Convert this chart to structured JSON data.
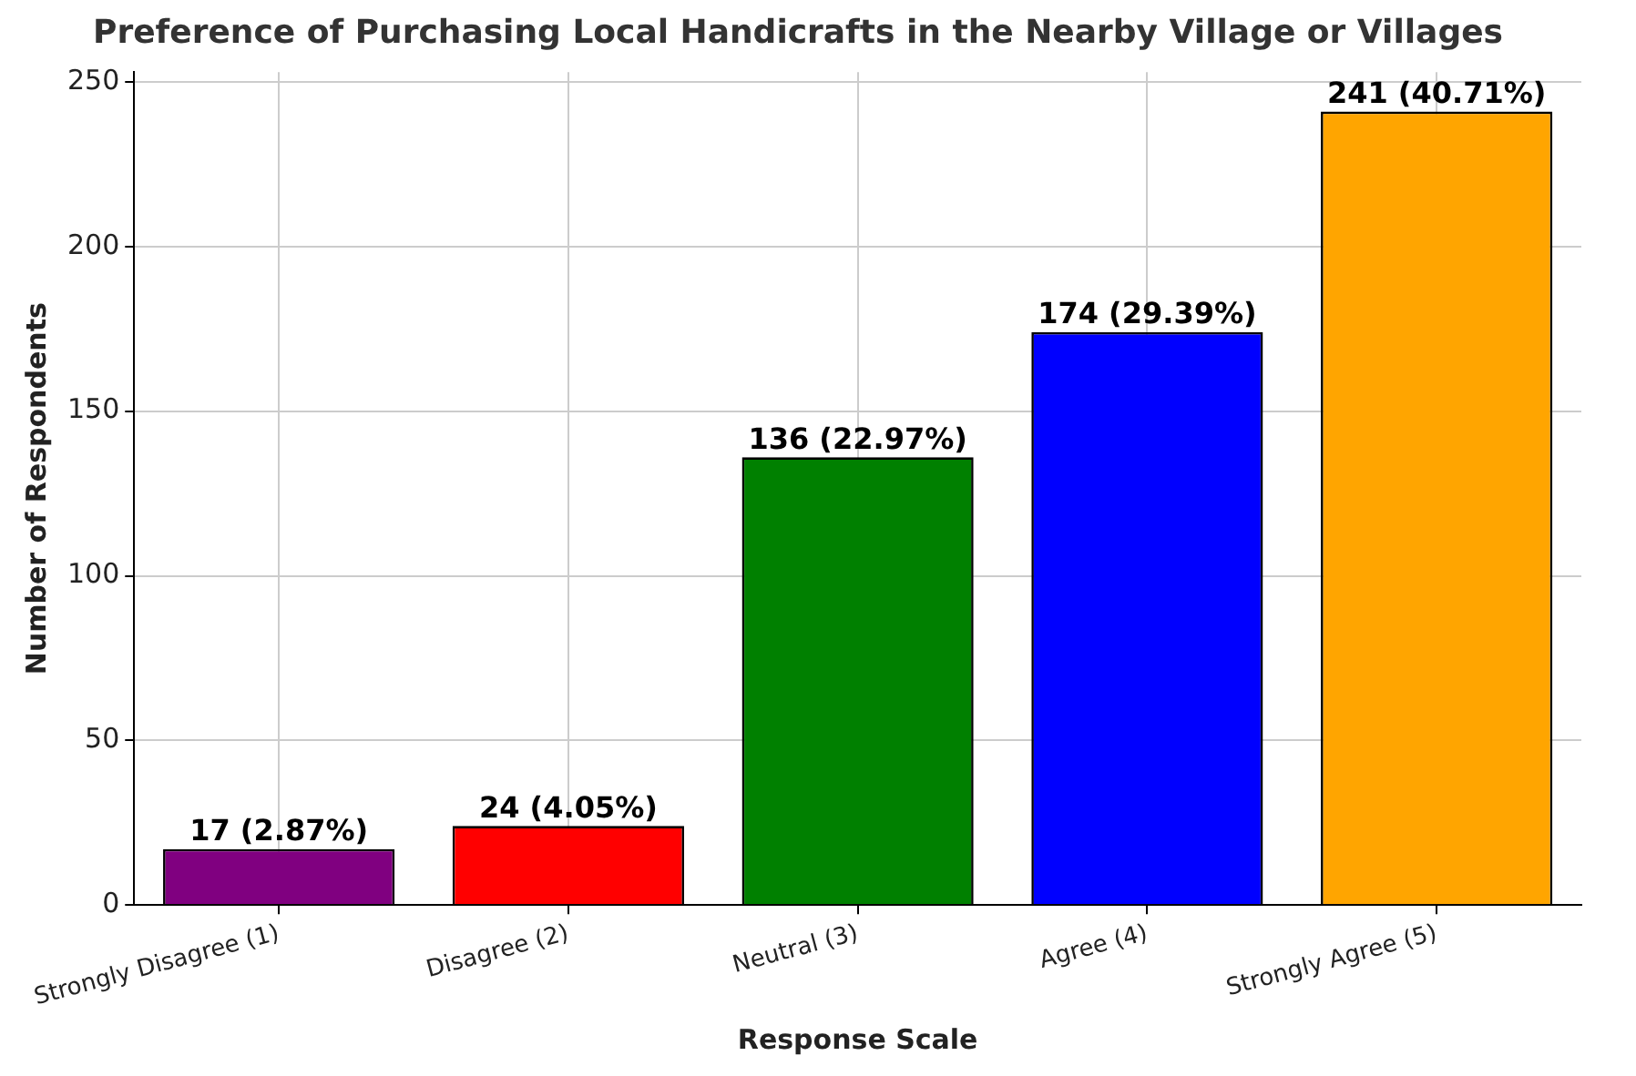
{
  "chart_data": {
    "type": "bar",
    "title": "Preference of Purchasing Local Handicrafts in the Nearby Village or Villages",
    "xlabel": "Response Scale",
    "ylabel": "Number of Respondents",
    "categories": [
      "Strongly Disagree (1)",
      "Disagree (2)",
      "Neutral (3)",
      "Agree (4)",
      "Strongly Agree (5)"
    ],
    "values": [
      17,
      24,
      136,
      174,
      241
    ],
    "colors": [
      "#800080",
      "#ff0000",
      "#008000",
      "#0000ff",
      "#ffa500"
    ],
    "value_labels": [
      "17 (2.87%)",
      "24 (4.05%)",
      "136 (22.97%)",
      "174 (29.39%)",
      "241 (40.71%)"
    ],
    "ylim": [
      0,
      253
    ],
    "yticks": [
      0,
      50,
      100,
      150,
      200,
      250
    ],
    "grid": true
  }
}
